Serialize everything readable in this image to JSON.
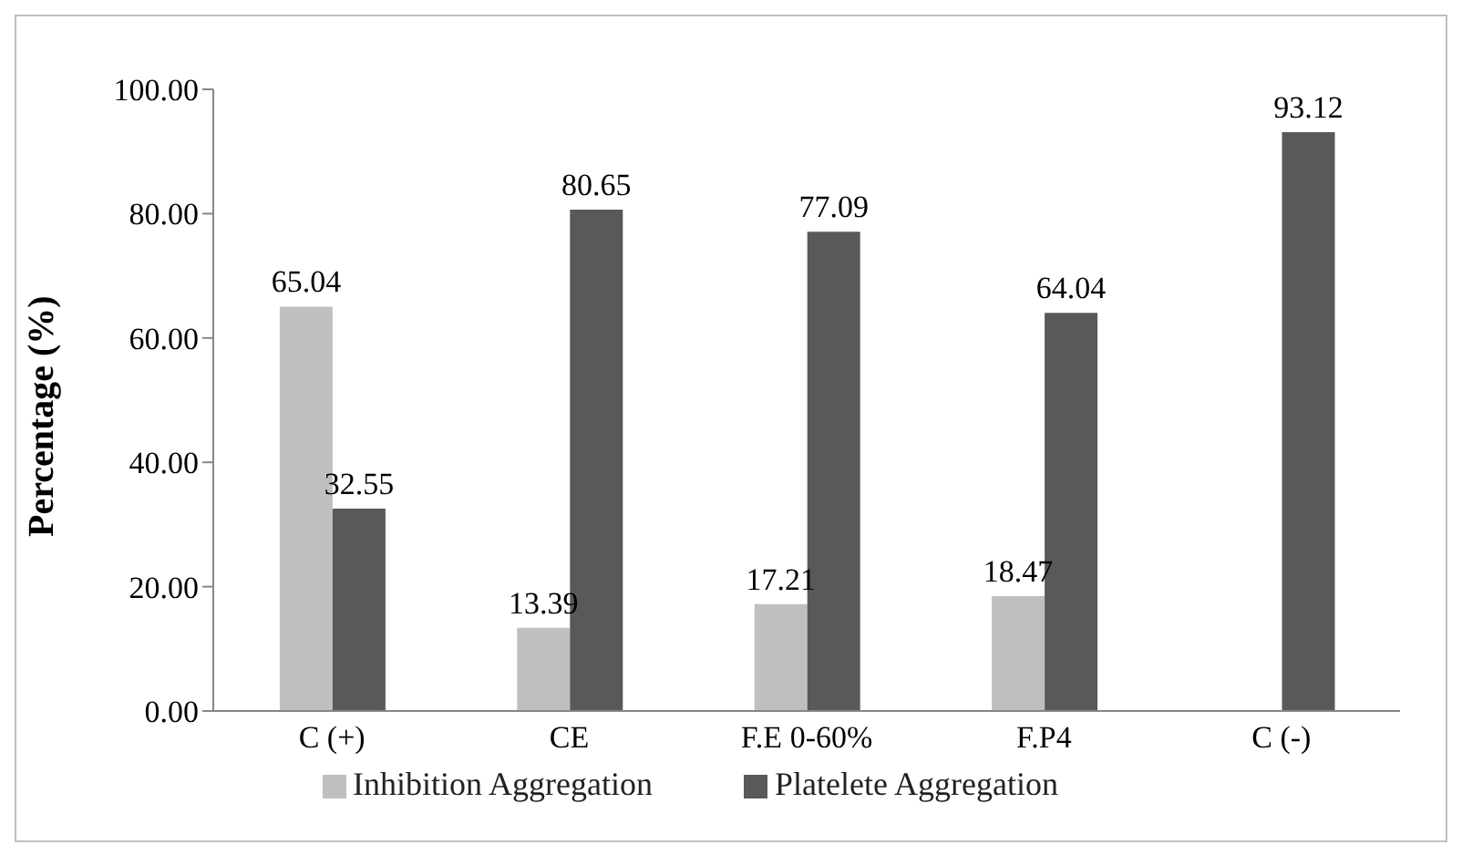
{
  "chart_data": {
    "type": "bar",
    "ylabel": "Percentage (%)",
    "categories": [
      "C (+)",
      "CE",
      "F.E 0-60%",
      "F.P4",
      "C (-)"
    ],
    "series": [
      {
        "name": "Inhibition Aggregation",
        "color": "#bfbfbf",
        "values": [
          65.04,
          13.39,
          17.21,
          18.47,
          null
        ]
      },
      {
        "name": "Platelete Aggregation",
        "color": "#595959",
        "values": [
          32.55,
          80.65,
          77.09,
          64.04,
          93.12
        ]
      }
    ],
    "ylim": [
      0,
      100
    ],
    "yticks": [
      {
        "value": 0,
        "label": "0.00"
      },
      {
        "value": 20,
        "label": "20.00"
      },
      {
        "value": 40,
        "label": "40.00"
      },
      {
        "value": 60,
        "label": "60.00"
      },
      {
        "value": 80,
        "label": "80.00"
      },
      {
        "value": 100,
        "label": "100.00"
      }
    ],
    "data_labels": true,
    "grid": false,
    "legend": "bottom"
  }
}
